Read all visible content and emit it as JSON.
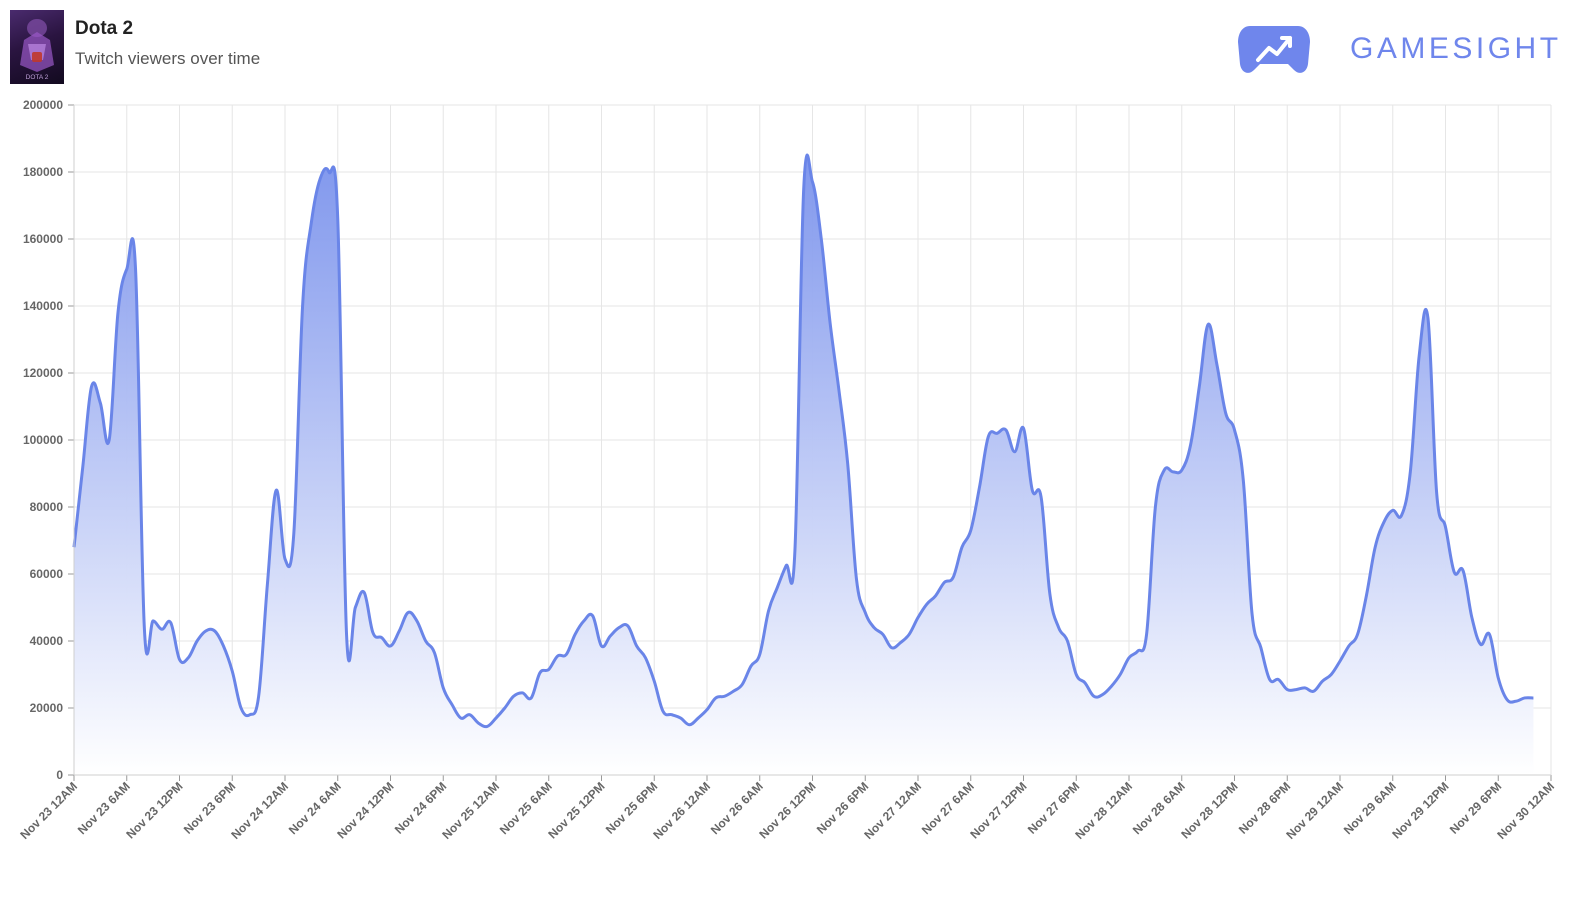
{
  "header": {
    "game_title": "Dota 2",
    "subtitle": "Twitch viewers over time",
    "thumbnail_icon": "dota2-cover-icon",
    "thumbnail_caption": "DOTA 2",
    "brand_name": "GAMESIGHT",
    "brand_icon": "gamesight-gamepad-icon"
  },
  "colors": {
    "line": "#6a85e8",
    "fill_top": "#7a92ec",
    "fill_bottom": "#ffffff",
    "grid": "#e6e6e6",
    "axis_text": "#666666",
    "brand": "#6f86ec"
  },
  "chart_data": {
    "type": "area",
    "title": "",
    "xlabel": "",
    "ylabel": "",
    "ylim": [
      0,
      200000
    ],
    "yticks": [
      0,
      20000,
      40000,
      60000,
      80000,
      100000,
      120000,
      140000,
      160000,
      180000,
      200000
    ],
    "grid": true,
    "legend": "none",
    "x_tick_labels": [
      "Nov 23 12AM",
      "Nov 23 6AM",
      "Nov 23 12PM",
      "Nov 23 6PM",
      "Nov 24 12AM",
      "Nov 24 6AM",
      "Nov 24 12PM",
      "Nov 24 6PM",
      "Nov 25 12AM",
      "Nov 25 6AM",
      "Nov 25 12PM",
      "Nov 25 6PM",
      "Nov 26 12AM",
      "Nov 26 6AM",
      "Nov 26 12PM",
      "Nov 26 6PM",
      "Nov 27 12AM",
      "Nov 27 6AM",
      "Nov 27 12PM",
      "Nov 27 6PM",
      "Nov 28 12AM",
      "Nov 28 6AM",
      "Nov 28 12PM",
      "Nov 28 6PM",
      "Nov 29 12AM",
      "Nov 29 6AM",
      "Nov 29 12PM",
      "Nov 29 6PM",
      "Nov 30 12AM"
    ],
    "series": [
      {
        "name": "",
        "points": [
          [
            0,
            68000
          ],
          [
            1,
            92000
          ],
          [
            2,
            116000
          ],
          [
            3,
            111000
          ],
          [
            4,
            100000
          ],
          [
            5,
            138000
          ],
          [
            6,
            151000
          ],
          [
            7,
            151000
          ],
          [
            8,
            44000
          ],
          [
            9,
            46000
          ],
          [
            10,
            43500
          ],
          [
            11,
            45500
          ],
          [
            12,
            34500
          ],
          [
            13,
            35000
          ],
          [
            14,
            40000
          ],
          [
            15,
            43000
          ],
          [
            16,
            43000
          ],
          [
            17,
            38500
          ],
          [
            18,
            31000
          ],
          [
            19,
            20000
          ],
          [
            20,
            18000
          ],
          [
            21,
            23500
          ],
          [
            22,
            57000
          ],
          [
            23,
            85000
          ],
          [
            24,
            64500
          ],
          [
            25,
            72000
          ],
          [
            26,
            140000
          ],
          [
            27,
            165000
          ],
          [
            28,
            178000
          ],
          [
            29,
            180000
          ],
          [
            30,
            166000
          ],
          [
            31,
            42000
          ],
          [
            32,
            50000
          ],
          [
            33,
            54500
          ],
          [
            34,
            42500
          ],
          [
            35,
            41000
          ],
          [
            36,
            38500
          ],
          [
            37,
            43000
          ],
          [
            38,
            48500
          ],
          [
            39,
            46000
          ],
          [
            40,
            40000
          ],
          [
            41,
            36500
          ],
          [
            42,
            26000
          ],
          [
            43,
            21000
          ],
          [
            44,
            17000
          ],
          [
            45,
            18000
          ],
          [
            46,
            15500
          ],
          [
            47,
            14500
          ],
          [
            48,
            17000
          ],
          [
            49,
            20000
          ],
          [
            50,
            23500
          ],
          [
            51,
            24500
          ],
          [
            52,
            23000
          ],
          [
            53,
            30500
          ],
          [
            54,
            31500
          ],
          [
            55,
            35500
          ],
          [
            56,
            36000
          ],
          [
            57,
            42000
          ],
          [
            58,
            46000
          ],
          [
            59,
            47500
          ],
          [
            60,
            38500
          ],
          [
            61,
            41500
          ],
          [
            62,
            44000
          ],
          [
            63,
            44500
          ],
          [
            64,
            38500
          ],
          [
            65,
            35000
          ],
          [
            66,
            28000
          ],
          [
            67,
            19000
          ],
          [
            68,
            18000
          ],
          [
            69,
            17000
          ],
          [
            70,
            15000
          ],
          [
            71,
            17000
          ],
          [
            72,
            19500
          ],
          [
            73,
            23000
          ],
          [
            74,
            23500
          ],
          [
            75,
            25000
          ],
          [
            76,
            27000
          ],
          [
            77,
            32500
          ],
          [
            78,
            36000
          ],
          [
            79,
            49000
          ],
          [
            80,
            56000
          ],
          [
            81,
            62500
          ],
          [
            82,
            67000
          ],
          [
            83,
            175000
          ],
          [
            84,
            177000
          ],
          [
            85,
            160000
          ],
          [
            86,
            135000
          ],
          [
            87,
            115000
          ],
          [
            88,
            93000
          ],
          [
            89,
            58500
          ],
          [
            90,
            48500
          ],
          [
            91,
            44000
          ],
          [
            92,
            42000
          ],
          [
            93,
            38000
          ],
          [
            94,
            39500
          ],
          [
            95,
            42000
          ],
          [
            96,
            47000
          ],
          [
            97,
            51000
          ],
          [
            98,
            53500
          ],
          [
            99,
            57500
          ],
          [
            100,
            59000
          ],
          [
            101,
            68000
          ],
          [
            102,
            73000
          ],
          [
            103,
            86000
          ],
          [
            104,
            101000
          ],
          [
            105,
            102000
          ],
          [
            106,
            103000
          ],
          [
            107,
            96500
          ],
          [
            108,
            103500
          ],
          [
            109,
            85000
          ],
          [
            110,
            83000
          ],
          [
            111,
            54000
          ],
          [
            112,
            44000
          ],
          [
            113,
            40000
          ],
          [
            114,
            30000
          ],
          [
            115,
            27500
          ],
          [
            116,
            23500
          ],
          [
            117,
            24000
          ],
          [
            118,
            26500
          ],
          [
            119,
            30000
          ],
          [
            120,
            35000
          ],
          [
            121,
            37000
          ],
          [
            122,
            42000
          ],
          [
            123,
            80000
          ],
          [
            124,
            91000
          ],
          [
            125,
            90500
          ],
          [
            126,
            91000
          ],
          [
            127,
            98500
          ],
          [
            128,
            116000
          ],
          [
            129,
            134500
          ],
          [
            130,
            122500
          ],
          [
            131,
            108000
          ],
          [
            132,
            103000
          ],
          [
            133,
            88000
          ],
          [
            134,
            48000
          ],
          [
            135,
            38000
          ],
          [
            136,
            28500
          ],
          [
            137,
            28500
          ],
          [
            138,
            25500
          ],
          [
            139,
            25500
          ],
          [
            140,
            26000
          ],
          [
            141,
            25000
          ],
          [
            142,
            28000
          ],
          [
            143,
            30000
          ],
          [
            144,
            34000
          ],
          [
            145,
            38500
          ],
          [
            146,
            42000
          ],
          [
            147,
            53500
          ],
          [
            148,
            68000
          ],
          [
            149,
            75500
          ],
          [
            150,
            79000
          ],
          [
            151,
            77500
          ],
          [
            152,
            90500
          ],
          [
            153,
            125000
          ],
          [
            154,
            136500
          ],
          [
            155,
            84000
          ],
          [
            156,
            74000
          ],
          [
            157,
            60500
          ],
          [
            158,
            61000
          ],
          [
            159,
            47000
          ],
          [
            160,
            39000
          ],
          [
            161,
            42000
          ],
          [
            162,
            29000
          ],
          [
            163,
            22500
          ],
          [
            164,
            22000
          ],
          [
            165,
            23000
          ],
          [
            166,
            23000
          ]
        ]
      }
    ]
  }
}
